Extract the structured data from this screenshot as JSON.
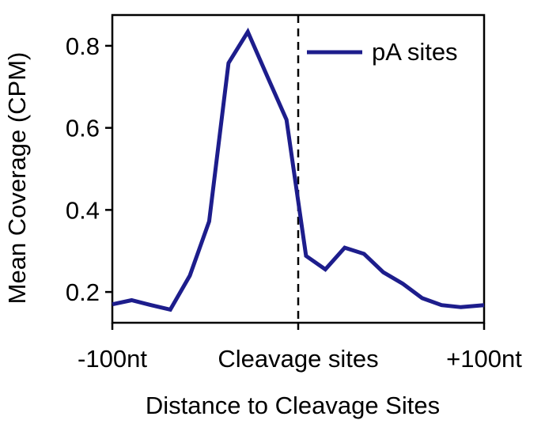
{
  "chart_data": {
    "type": "line",
    "title": "",
    "xlabel": "Distance to Cleavage Sites",
    "ylabel": "Mean Coverage (CPM)",
    "x_ticks": [
      {
        "x": -100,
        "label": "-100nt"
      },
      {
        "x": 0,
        "label": "Cleavage sites"
      },
      {
        "x": 100,
        "label": "+100nt"
      }
    ],
    "y_ticks": [
      {
        "y": 0.2,
        "label": "0.2"
      },
      {
        "y": 0.4,
        "label": "0.4"
      },
      {
        "y": 0.6,
        "label": "0.6"
      },
      {
        "y": 0.8,
        "label": "0.8"
      }
    ],
    "xlim": [
      -100,
      100
    ],
    "ylim": [
      0.125,
      0.875
    ],
    "grid": false,
    "legend_position": "top-right",
    "vertical_line": {
      "x": 0,
      "style": "dashed"
    },
    "series": [
      {
        "name": "pA sites",
        "color": "#1d1d8c",
        "x": [
          -100,
          -89.6,
          -79.2,
          -68.8,
          -58.3,
          -47.9,
          -37.5,
          -27.1,
          -16.7,
          -6.3,
          4.2,
          14.6,
          25.0,
          35.4,
          45.8,
          56.3,
          66.7,
          77.1,
          87.5,
          100
        ],
        "y": [
          0.17,
          0.18,
          0.168,
          0.157,
          0.24,
          0.372,
          0.758,
          0.834,
          0.726,
          0.62,
          0.288,
          0.255,
          0.308,
          0.293,
          0.248,
          0.22,
          0.185,
          0.168,
          0.163,
          0.168
        ]
      }
    ]
  }
}
